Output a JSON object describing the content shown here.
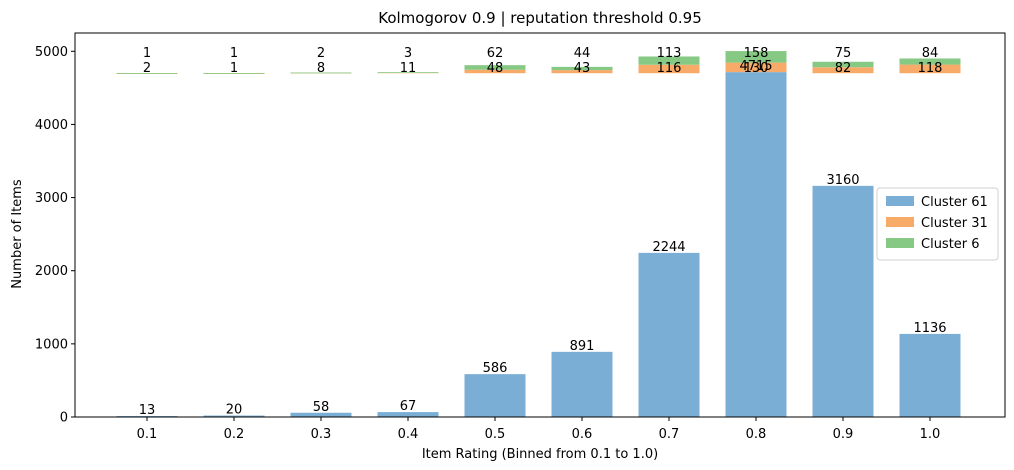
{
  "chart_data": {
    "type": "bar",
    "title": "Kolmogorov 0.9 | reputation threshold 0.95",
    "xlabel": "Item Rating (Binned from 0.1 to 1.0)",
    "ylabel": "Number of Items",
    "ylim": [
      0,
      5250
    ],
    "yticks": [
      "0",
      "1000",
      "2000",
      "3000",
      "4000",
      "5000"
    ],
    "categories": [
      "0.1",
      "0.2",
      "0.3",
      "0.4",
      "0.5",
      "0.6",
      "0.7",
      "0.8",
      "0.9",
      "1.0"
    ],
    "series": [
      {
        "name": "Cluster 61",
        "color": "#7aaed4",
        "values": [
          13,
          20,
          58,
          67,
          586,
          891,
          2244,
          4715,
          3160,
          1136
        ],
        "labels": [
          "13",
          "20",
          "58",
          "67",
          "586",
          "891",
          "2244",
          "4715",
          "3160",
          "1136"
        ]
      },
      {
        "name": "Cluster 31",
        "color": "#f8aa69",
        "values": [
          2,
          1,
          8,
          11,
          48,
          43,
          116,
          130,
          82,
          118
        ],
        "labels": [
          "2",
          "1",
          "8",
          "11",
          "48",
          "43",
          "116",
          "130",
          "82",
          "118"
        ]
      },
      {
        "name": "Cluster 6",
        "color": "#86c984",
        "values": [
          1,
          1,
          2,
          3,
          62,
          44,
          113,
          158,
          75,
          84
        ],
        "labels": [
          "1",
          "1",
          "2",
          "3",
          "62",
          "44",
          "113",
          "158",
          "75",
          "84"
        ]
      }
    ],
    "legend": "center-right",
    "grid": false
  }
}
